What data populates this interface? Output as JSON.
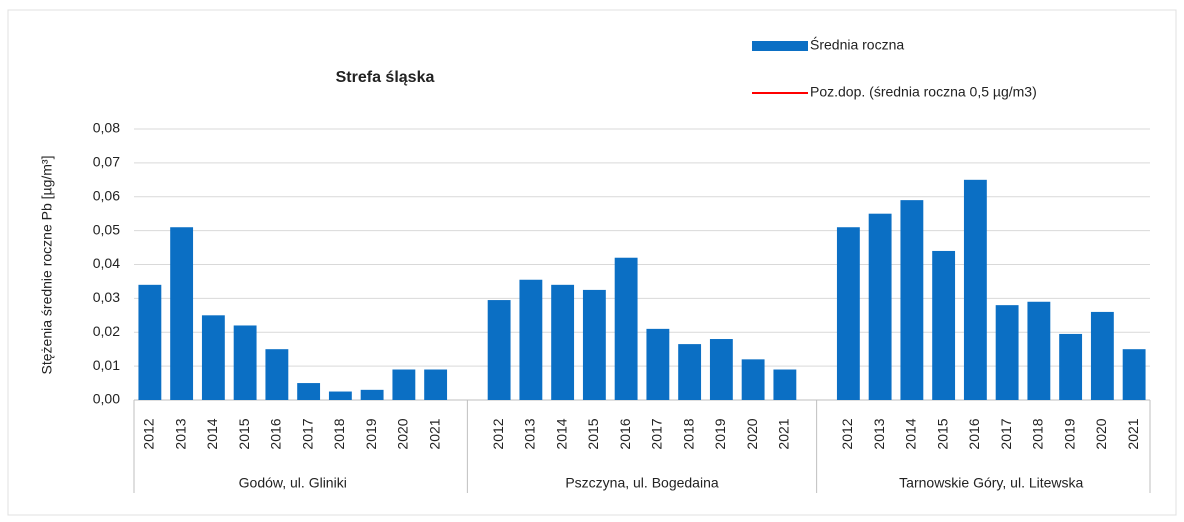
{
  "chart_data": {
    "type": "bar",
    "title": "Strefa śląska",
    "ylabel": "Stężenia średnie roczne Pb [µg/m³]",
    "ylim": [
      0,
      0.08
    ],
    "yticks": [
      {
        "value": 0,
        "label": "0,00"
      },
      {
        "value": 0.01,
        "label": "0,01"
      },
      {
        "value": 0.02,
        "label": "0,02"
      },
      {
        "value": 0.03,
        "label": "0,03"
      },
      {
        "value": 0.04,
        "label": "0,04"
      },
      {
        "value": 0.05,
        "label": "0,05"
      },
      {
        "value": 0.06,
        "label": "0,06"
      },
      {
        "value": 0.07,
        "label": "0,07"
      },
      {
        "value": 0.08,
        "label": "0,08"
      }
    ],
    "grid": true,
    "color": "#0b6fc4",
    "legend": [
      {
        "name": "Średnia roczna",
        "color": "#0b6fc4"
      },
      {
        "name": "Poz.dop. (średnia roczna 0,5 µg/m3)",
        "color": "#ff0000"
      }
    ],
    "groups": [
      {
        "name": "Godów, ul. Gliniki",
        "categories": [
          "2012",
          "2013",
          "2014",
          "2015",
          "2016",
          "2017",
          "2018",
          "2019",
          "2020",
          "2021"
        ],
        "values": [
          0.034,
          0.051,
          0.025,
          0.022,
          0.015,
          0.005,
          0.0025,
          0.003,
          0.009,
          0.009
        ]
      },
      {
        "name": "Pszczyna, ul. Bogedaina",
        "categories": [
          "2012",
          "2013",
          "2014",
          "2015",
          "2016",
          "2017",
          "2018",
          "2019",
          "2020",
          "2021"
        ],
        "values": [
          0.0295,
          0.0355,
          0.034,
          0.0325,
          0.042,
          0.021,
          0.0165,
          0.018,
          0.012,
          0.009
        ]
      },
      {
        "name": "Tarnowskie Góry, ul. Litewska",
        "categories": [
          "2012",
          "2013",
          "2014",
          "2015",
          "2016",
          "2017",
          "2018",
          "2019",
          "2020",
          "2021"
        ],
        "values": [
          0.051,
          0.055,
          0.059,
          0.044,
          0.065,
          0.028,
          0.029,
          0.0195,
          0.026,
          0.015
        ]
      }
    ]
  }
}
